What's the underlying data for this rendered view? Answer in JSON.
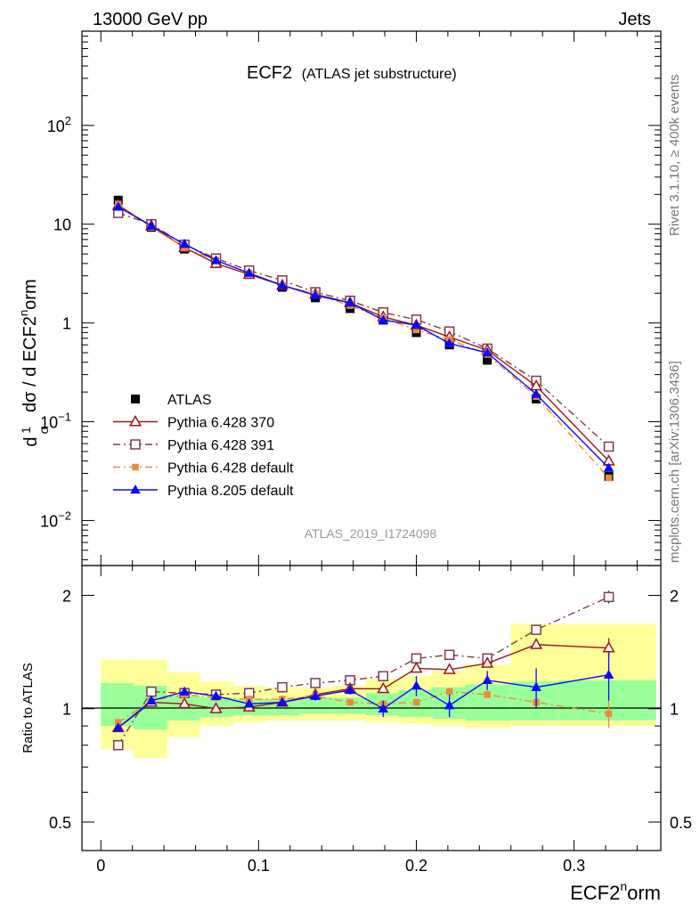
{
  "header": {
    "left": "13000 GeV pp",
    "right": "Jets"
  },
  "chart_data": {
    "type": "line",
    "title_main": "ECF2",
    "title_sub": "(ATLAS jet substructure)",
    "analysis_id": "ATLAS_2019_I1724098",
    "side_top": "Rivet 3.1.10, ≥ 400k events",
    "side_bottom": "mcplots.cern.ch [arXiv:1306.3436]",
    "ylabel_main": {
      "prefix": "dσ / d ECF2",
      "sup": "n",
      "suffix": "orm",
      "one": "1",
      "sigma": "σ",
      "d": "d"
    },
    "xlabel": {
      "main": "ECF2",
      "sup": "n",
      "suffix": "orm"
    },
    "ylabel_ratio": "Ratio to ATLAS",
    "xlim": [
      -0.012,
      0.355
    ],
    "ylim_main": [
      0.0035,
      900
    ],
    "ylim_ratio": [
      0.42,
      2.4
    ],
    "x_ticks": [
      "0",
      "0.1",
      "0.2",
      "0.3"
    ],
    "x_tick_values": [
      0,
      0.1,
      0.2,
      0.3
    ],
    "main_y_ticks": [
      {
        "v": 0.01,
        "base": "10",
        "exp": "−2"
      },
      {
        "v": 0.1,
        "base": "10",
        "exp": "−1"
      },
      {
        "v": 1,
        "base": "1",
        "exp": ""
      },
      {
        "v": 10,
        "base": "10",
        "exp": ""
      },
      {
        "v": 100,
        "base": "10",
        "exp": "2"
      }
    ],
    "ratio_y_ticks": [
      {
        "v": 0.5,
        "label": "0.5"
      },
      {
        "v": 1,
        "label": "1"
      },
      {
        "v": 2,
        "label": "2"
      }
    ],
    "x": [
      0.011,
      0.032,
      0.053,
      0.073,
      0.094,
      0.115,
      0.136,
      0.158,
      0.179,
      0.2,
      0.221,
      0.245,
      0.276,
      0.322
    ],
    "bin_edges": [
      0,
      0.021,
      0.042,
      0.063,
      0.084,
      0.105,
      0.126,
      0.147,
      0.168,
      0.189,
      0.21,
      0.231,
      0.26,
      0.29,
      0.352
    ],
    "band_inner": [
      [
        0.9,
        1.17
      ],
      [
        0.88,
        1.15
      ],
      [
        0.93,
        1.08
      ],
      [
        0.95,
        1.07
      ],
      [
        0.96,
        1.06
      ],
      [
        0.96,
        1.06
      ],
      [
        0.97,
        1.07
      ],
      [
        0.97,
        1.07
      ],
      [
        0.96,
        1.1
      ],
      [
        0.95,
        1.12
      ],
      [
        0.94,
        1.14
      ],
      [
        0.93,
        1.16
      ],
      [
        0.93,
        1.18
      ],
      [
        0.93,
        1.19
      ]
    ],
    "band_outer": [
      [
        0.78,
        1.35
      ],
      [
        0.74,
        1.35
      ],
      [
        0.84,
        1.25
      ],
      [
        0.9,
        1.18
      ],
      [
        0.92,
        1.15
      ],
      [
        0.93,
        1.14
      ],
      [
        0.93,
        1.14
      ],
      [
        0.93,
        1.15
      ],
      [
        0.92,
        1.2
      ],
      [
        0.91,
        1.22
      ],
      [
        0.9,
        1.26
      ],
      [
        0.89,
        1.31
      ],
      [
        0.9,
        1.68
      ],
      [
        0.9,
        1.68
      ]
    ],
    "series": [
      {
        "name": "ATLAS",
        "color": "#000000",
        "marker": "square-filled",
        "line": "none",
        "values": [
          17.5,
          9.3,
          5.6,
          4.0,
          3.1,
          2.3,
          1.8,
          1.4,
          1.07,
          0.8,
          0.6,
          0.42,
          0.17,
          0.028
        ],
        "ratio": [
          1,
          1,
          1,
          1,
          1,
          1,
          1,
          1,
          1,
          1,
          1,
          1,
          1,
          1
        ],
        "ratio_err": [
          0,
          0,
          0,
          0,
          0,
          0,
          0,
          0,
          0,
          0,
          0,
          0,
          0,
          0
        ]
      },
      {
        "name": "Pythia 6.428 370",
        "color": "#a01515",
        "marker": "triangle-open",
        "line": "solid",
        "values": [
          15.5,
          9.6,
          5.8,
          4.0,
          3.1,
          2.4,
          1.95,
          1.6,
          1.15,
          0.95,
          0.72,
          0.53,
          0.23,
          0.04
        ],
        "ratio": [
          0.89,
          1.04,
          1.03,
          1.0,
          1.01,
          1.04,
          1.09,
          1.13,
          1.13,
          1.28,
          1.27,
          1.32,
          1.48,
          1.45
        ],
        "ratio_err": [
          0,
          0,
          0,
          0,
          0,
          0,
          0,
          0,
          0,
          0,
          0,
          0,
          0.03,
          0.09
        ]
      },
      {
        "name": "Pythia 6.428 391",
        "color": "#7b3b50",
        "marker": "square-open",
        "line": "dashdot",
        "values": [
          13,
          10,
          6.2,
          4.5,
          3.4,
          2.7,
          2.05,
          1.68,
          1.28,
          1.08,
          0.82,
          0.55,
          0.26,
          0.056
        ],
        "ratio": [
          0.8,
          1.11,
          1.1,
          1.09,
          1.1,
          1.14,
          1.17,
          1.19,
          1.22,
          1.36,
          1.39,
          1.36,
          1.62,
          1.98
        ],
        "ratio_err": [
          0,
          0,
          0,
          0,
          0,
          0,
          0,
          0,
          0,
          0,
          0,
          0,
          0.02,
          0.08
        ]
      },
      {
        "name": "Pythia 6.428 default",
        "color": "#f0883a",
        "marker": "square-filled-small",
        "line": "dashdot",
        "values": [
          16,
          9.3,
          5.8,
          4.3,
          3.2,
          2.4,
          1.95,
          1.5,
          1.12,
          0.85,
          0.68,
          0.48,
          0.18,
          0.027
        ],
        "ratio": [
          0.92,
          1.05,
          1.09,
          1.07,
          1.06,
          1.06,
          1.08,
          1.04,
          1.03,
          1.04,
          1.11,
          1.09,
          1.04,
          0.97
        ],
        "ratio_err": [
          0,
          0,
          0,
          0,
          0,
          0,
          0,
          0,
          0,
          0,
          0,
          0,
          0.04,
          0.08
        ]
      },
      {
        "name": "Pythia 8.205 default",
        "color": "#0a0aff",
        "marker": "triangle-filled",
        "line": "solid",
        "values": [
          15,
          9.6,
          6.3,
          4.3,
          3.2,
          2.4,
          1.9,
          1.6,
          1.07,
          0.95,
          0.62,
          0.5,
          0.19,
          0.034
        ],
        "ratio": [
          0.89,
          1.05,
          1.11,
          1.08,
          1.03,
          1.04,
          1.08,
          1.12,
          1.0,
          1.15,
          1.02,
          1.19,
          1.14,
          1.23
        ],
        "ratio_err": [
          0.02,
          0.02,
          0.02,
          0.02,
          0.02,
          0.02,
          0.03,
          0.03,
          0.05,
          0.07,
          0.07,
          0.07,
          0.14,
          0.18
        ]
      }
    ]
  }
}
